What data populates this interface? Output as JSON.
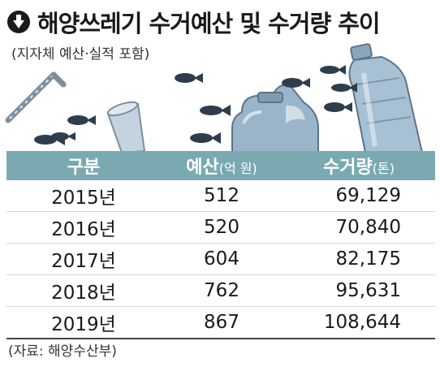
{
  "title": "해양쓰레기 수거예산 및 수거량 추이",
  "subtitle": "(지자체 예산·실적 포함)",
  "source": "(자료: 해양수산부)",
  "colors": {
    "header_bg": "#7aa9b2",
    "fish": "#2e3d4c",
    "bottle": "#9ab4c9",
    "cup": "#c5d3e0"
  },
  "icons": [
    "down-arrow-circle-icon",
    "straw-icon",
    "cup-icon",
    "jug-icon",
    "bottle-icon",
    "fish-icon"
  ],
  "chart_data": {
    "type": "table",
    "columns": [
      {
        "label": "구분",
        "unit": ""
      },
      {
        "label": "예산",
        "unit": "(억 원)"
      },
      {
        "label": "수거량",
        "unit": "(톤)"
      }
    ],
    "rows": [
      {
        "year": "2015년",
        "budget": "512",
        "amount": "69,129"
      },
      {
        "year": "2016년",
        "budget": "520",
        "amount": "70,840"
      },
      {
        "year": "2017년",
        "budget": "604",
        "amount": "82,175"
      },
      {
        "year": "2018년",
        "budget": "762",
        "amount": "95,631"
      },
      {
        "year": "2019년",
        "budget": "867",
        "amount": "108,644"
      }
    ]
  }
}
